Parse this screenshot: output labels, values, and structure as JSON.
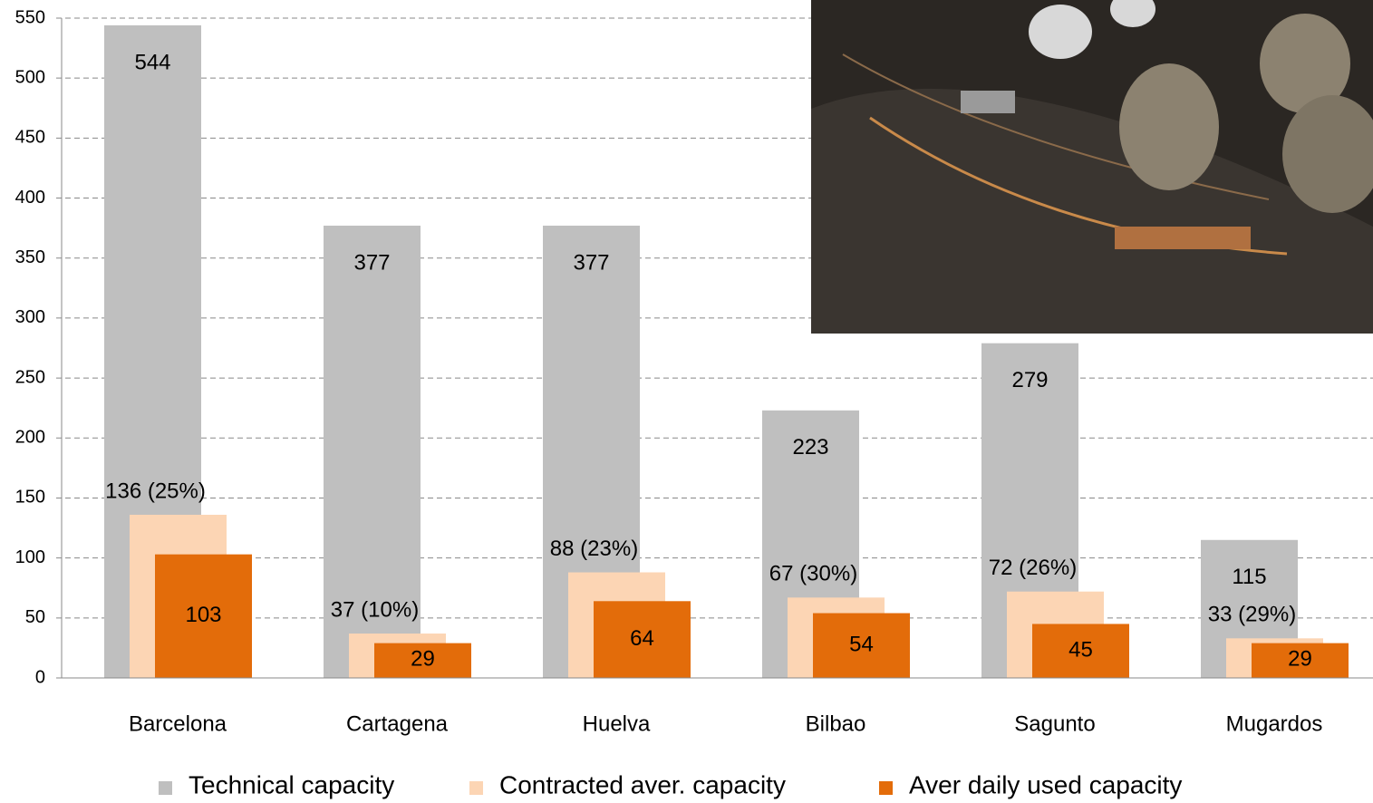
{
  "chart_data": {
    "type": "bar",
    "categories": [
      "Barcelona",
      "Cartagena",
      "Huelva",
      "Bilbao",
      "Sagunto",
      "Mugardos"
    ],
    "series": [
      {
        "name": "Technical capacity",
        "color": "#bfbfbf",
        "values": [
          544,
          377,
          377,
          223,
          279,
          115
        ]
      },
      {
        "name": "Contracted aver. capacity",
        "color": "#fcd5b4",
        "values": [
          136,
          37,
          88,
          67,
          72,
          33
        ],
        "value_labels": [
          "136 (25%)",
          "37 (10%)",
          "88 (23%)",
          "67 (30%)",
          "72 (26%)",
          "33 (29%)"
        ]
      },
      {
        "name": "Aver daily used capacity",
        "color": "#e36c0a",
        "values": [
          103,
          29,
          64,
          54,
          45,
          29
        ]
      }
    ],
    "ylim": [
      0,
      550
    ],
    "yticks": [
      0,
      50,
      100,
      150,
      200,
      250,
      300,
      350,
      400,
      450,
      500,
      550
    ],
    "grid": true,
    "legend": "bottom"
  }
}
